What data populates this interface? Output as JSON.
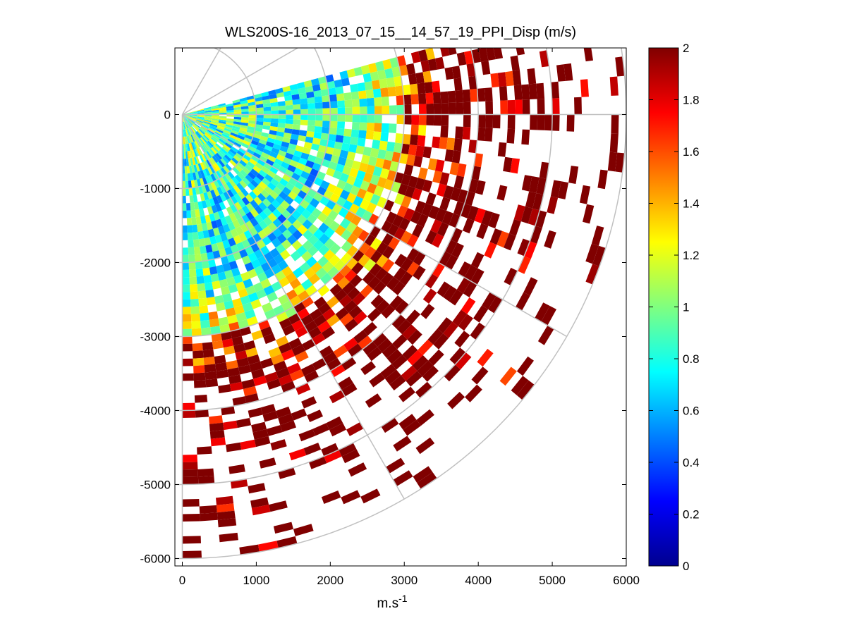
{
  "chart_data": {
    "type": "heatmap",
    "title": "WLS200S-16_2013_07_15__14_57_19_PPI_Disp (m/s)",
    "xlabel": "m.s",
    "xlabel_superscript": "-1",
    "ylabel": "",
    "xlim": [
      -100,
      6000
    ],
    "ylim": [
      -6100,
      900
    ],
    "xticks": [
      0,
      1000,
      2000,
      3000,
      4000,
      5000,
      6000
    ],
    "xtick_labels": [
      "0",
      "1000",
      "2000",
      "3000",
      "4000",
      "5000",
      "6000"
    ],
    "yticks": [
      0,
      -1000,
      -2000,
      -3000,
      -4000,
      -5000,
      -6000
    ],
    "ytick_labels": [
      "0",
      "-1000",
      "-2000",
      "-3000",
      "-4000",
      "-5000",
      "-6000"
    ],
    "polar_grid": {
      "rings": [
        1000,
        2000,
        3000,
        4000,
        5000,
        6000
      ],
      "spokes_deg": [
        0,
        -30,
        -60,
        -90,
        30,
        60
      ]
    },
    "sector": {
      "azimuth_from_deg": -90,
      "azimuth_to_deg": 15,
      "max_range": 6000
    },
    "colorbar": {
      "colormap": "jet",
      "clim": [
        0,
        2
      ],
      "ticks": [
        0,
        0.2,
        0.4,
        0.6,
        0.8,
        1,
        1.2,
        1.4,
        1.6,
        1.8,
        2
      ],
      "tick_labels": [
        "0",
        "0.2",
        "0.4",
        "0.6",
        "0.8",
        "1",
        "1.2",
        "1.4",
        "1.6",
        "1.8",
        "2"
      ]
    },
    "value_profile": {
      "description": "Dispersion (m/s) mostly 0.6-1.2 within ~2500 m, rising to saturated >=2 beyond ~3500 m; sparse coverage at far range",
      "range_m": [
        0,
        1000,
        2000,
        2500,
        3000,
        3500,
        4000,
        5000,
        6000
      ],
      "typical_value": [
        1.0,
        0.85,
        0.8,
        0.95,
        1.3,
        1.8,
        2.0,
        2.0,
        2.0
      ],
      "coverage_fraction": [
        0.98,
        0.97,
        0.95,
        0.9,
        0.85,
        0.7,
        0.55,
        0.3,
        0.15
      ]
    }
  }
}
